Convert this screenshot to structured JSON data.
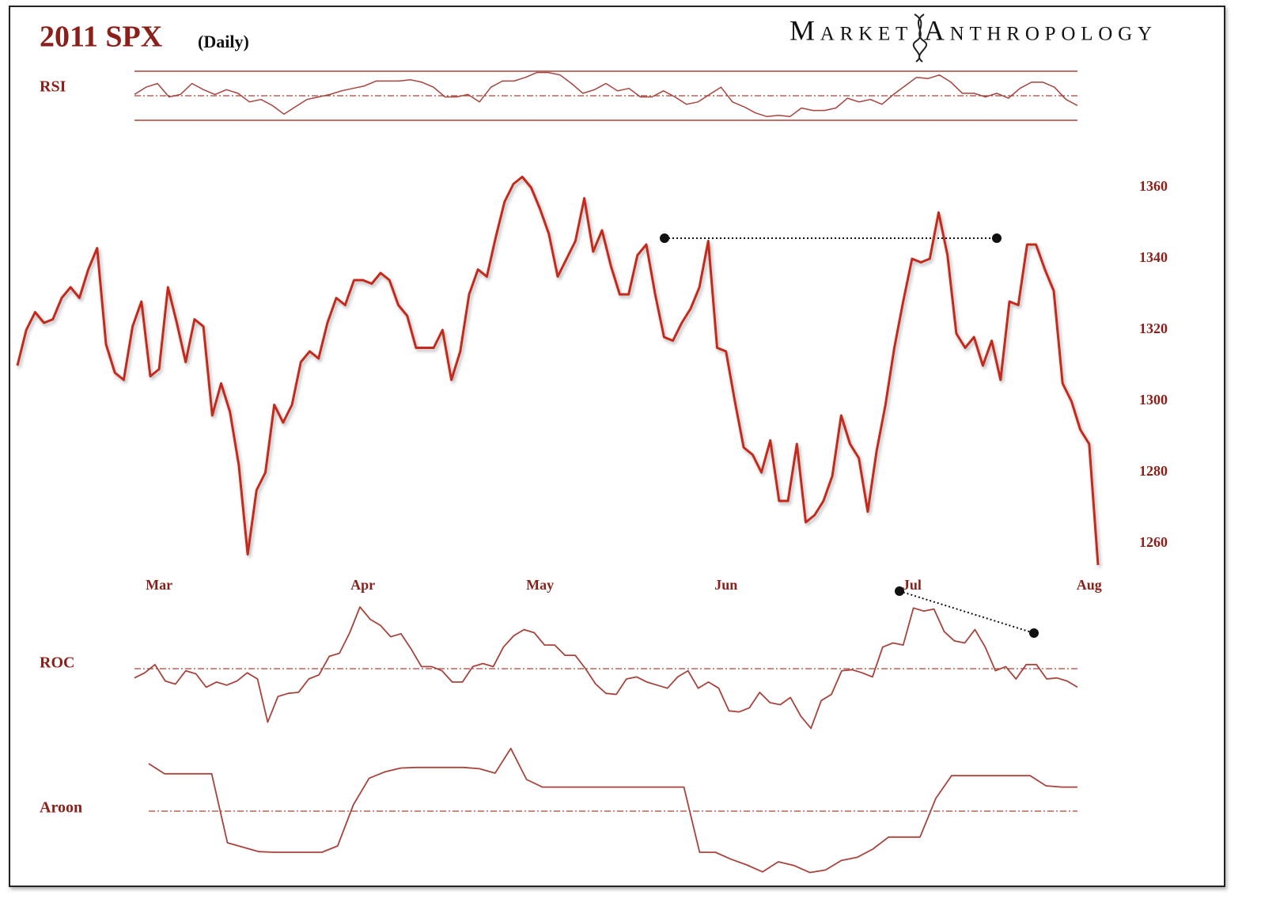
{
  "title": "2011 SPX",
  "subtitle": "(Daily)",
  "brand": "Market Anthropology",
  "chart_data": [
    {
      "type": "line",
      "label": "SPX",
      "color": "#c42a1e",
      "categories": [
        null,
        null,
        null,
        null,
        null,
        null,
        null,
        null,
        null,
        null,
        null,
        null,
        null,
        null,
        null,
        null,
        "Mar",
        null,
        null,
        null,
        null,
        null,
        null,
        null,
        null,
        null,
        null,
        null,
        null,
        null,
        null,
        null,
        null,
        null,
        null,
        null,
        null,
        null,
        null,
        "Apr",
        null,
        null,
        null,
        null,
        null,
        null,
        null,
        null,
        null,
        null,
        null,
        null,
        null,
        null,
        null,
        null,
        null,
        null,
        null,
        "May",
        null,
        null,
        null,
        null,
        null,
        null,
        null,
        null,
        null,
        null,
        null,
        null,
        null,
        null,
        null,
        null,
        null,
        null,
        null,
        null,
        "Jun",
        null,
        null,
        null,
        null,
        null,
        null,
        null,
        null,
        null,
        null,
        null,
        null,
        null,
        null,
        null,
        null,
        null,
        null,
        null,
        null,
        "Jul",
        null,
        null,
        null,
        null,
        null,
        null,
        null,
        null,
        null,
        null,
        null,
        null,
        null,
        null,
        null,
        null,
        null,
        null,
        null,
        "Aug",
        null
      ],
      "values": [
        1310,
        1320,
        1325,
        1322,
        1323,
        1329,
        1332,
        1329,
        1337,
        1343,
        1316,
        1308,
        1306,
        1321,
        1328,
        1307,
        1309,
        1332,
        1322,
        1311,
        1323,
        1321,
        1296,
        1305,
        1297,
        1282,
        1257,
        1275,
        1280,
        1299,
        1294,
        1299,
        1311,
        1314,
        1312,
        1322,
        1329,
        1327,
        1334,
        1334,
        1333,
        1336,
        1334,
        1327,
        1324,
        1315,
        1315,
        1315,
        1320,
        1306,
        1314,
        1330,
        1337,
        1335,
        1346,
        1356,
        1361,
        1363,
        1360,
        1354,
        1347,
        1335,
        1340,
        1345,
        1357,
        1342,
        1348,
        1338,
        1330,
        1330,
        1341,
        1344,
        1330,
        1318,
        1317,
        1322,
        1326,
        1332,
        1345,
        1315,
        1314,
        1300,
        1287,
        1285,
        1280,
        1289,
        1272,
        1272,
        1288,
        1266,
        1268,
        1272,
        1279,
        1296,
        1288,
        1284,
        1269,
        1286,
        1299,
        1315,
        1328,
        1340,
        1339,
        1340,
        1353,
        1341,
        1319,
        1315,
        1318,
        1310,
        1317,
        1306,
        1328,
        1327,
        1344,
        1344,
        1337,
        1331,
        1305,
        1300,
        1292,
        1288,
        1254
      ],
      "ylim": [
        1250,
        1370
      ],
      "yticks": [
        1260,
        1280,
        1300,
        1320,
        1340,
        1360
      ]
    },
    {
      "type": "line",
      "label": "RSI",
      "color": "#a8433c",
      "values": [
        51,
        57,
        60,
        49,
        51,
        60,
        55,
        51,
        55,
        52,
        45,
        47,
        42,
        35,
        41,
        47,
        49,
        51,
        54,
        56,
        58,
        62,
        62,
        62,
        63,
        61,
        57,
        49,
        49,
        51,
        45,
        57,
        62,
        62,
        65,
        69,
        69,
        67,
        60,
        52,
        55,
        60,
        54,
        56,
        49,
        49,
        54,
        49,
        43,
        45,
        51,
        57,
        45,
        41,
        36,
        33,
        34,
        33,
        40,
        38,
        38,
        40,
        48,
        45,
        47,
        43,
        51,
        58,
        65,
        64,
        67,
        61,
        52,
        52,
        49,
        52,
        48,
        56,
        61,
        61,
        57,
        47,
        42
      ],
      "ylim": [
        30,
        70
      ],
      "hlines": [
        30,
        70
      ],
      "midline": 50
    },
    {
      "type": "line",
      "label": "ROC",
      "color": "#a8433c",
      "values": [
        -0.9,
        -0.4,
        0.4,
        -1.2,
        -1.5,
        -0.2,
        -0.5,
        -1.8,
        -1.3,
        -1.6,
        -1.2,
        -0.4,
        -1.0,
        -5.2,
        -2.7,
        -2.4,
        -2.3,
        -1.0,
        -0.6,
        1.2,
        1.5,
        3.5,
        6.0,
        4.8,
        4.2,
        3.1,
        3.4,
        1.9,
        0.2,
        0.2,
        -0.2,
        -1.3,
        -1.3,
        0.2,
        0.5,
        0.2,
        2.1,
        3.2,
        3.8,
        3.5,
        2.3,
        2.3,
        1.3,
        1.3,
        0,
        -1.5,
        -2.4,
        -2.5,
        -1.0,
        -0.8,
        -1.3,
        -1.6,
        -1.9,
        -0.8,
        -0.2,
        -1.9,
        -1.3,
        -1.9,
        -4.1,
        -4.2,
        -3.8,
        -2.3,
        -3.3,
        -3.5,
        -2.8,
        -4.6,
        -5.8,
        -3.1,
        -2.5,
        -0.2,
        -0.1,
        -0.4,
        -0.8,
        2.1,
        2.5,
        2.3,
        5.9,
        5.6,
        5.8,
        3.6,
        2.7,
        2.5,
        3.8,
        2.1,
        -0.2,
        0.2,
        -1.0,
        0.4,
        0.4,
        -1.0,
        -0.9,
        -1.2,
        -1.8
      ],
      "ylim": [
        -6,
        6
      ],
      "midline": 0
    },
    {
      "type": "line",
      "label": "Aroon",
      "color": "#a8433c",
      "values": [
        75,
        59,
        59,
        59,
        59,
        -50,
        -57,
        -64,
        -65,
        -65,
        -65,
        -65,
        -55,
        10,
        52,
        62,
        68,
        69,
        69,
        69,
        69,
        67,
        60,
        99,
        50,
        38,
        38,
        38,
        38,
        38,
        38,
        38,
        38,
        38,
        38,
        -65,
        -65,
        -76,
        -85,
        -96,
        -80,
        -86,
        -97,
        -93,
        -78,
        -73,
        -60,
        -41,
        -41,
        -41,
        20,
        56,
        56,
        56,
        56,
        56,
        56,
        40,
        38,
        38
      ],
      "ylim": [
        -100,
        100
      ],
      "midline": 0
    }
  ]
}
